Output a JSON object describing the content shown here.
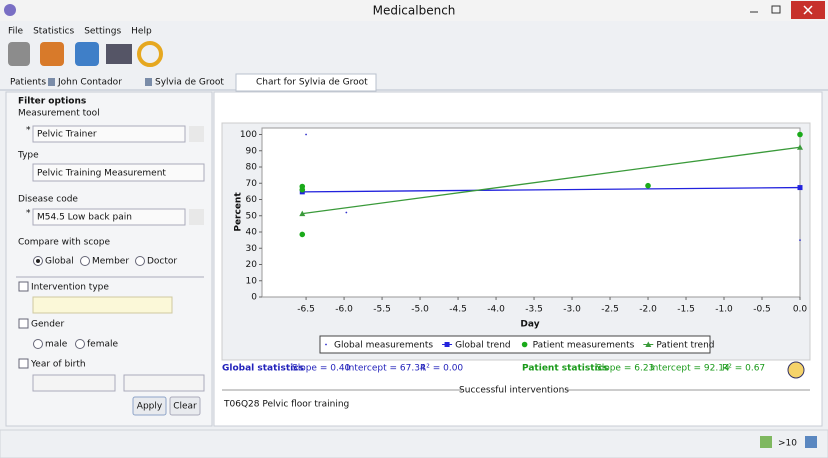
{
  "window": {
    "title": "Medicalbench"
  },
  "menu": [
    "File",
    "Statistics",
    "Settings",
    "Help"
  ],
  "tabs": [
    "Patients",
    "John Contador",
    "Sylvia de Groot",
    "Chart for Sylvia de Groot"
  ],
  "filter": {
    "title": "Filter options",
    "required_mark": "*",
    "measurement_tool_label": "Measurement tool",
    "measurement_tool": "Pelvic Trainer",
    "type_label": "Type",
    "type": "Pelvic Training Measurement",
    "disease_label": "Disease code",
    "disease": "M54.5 Low back pain",
    "scope_label": "Compare with scope",
    "scopes": [
      "Global",
      "Member",
      "Doctor"
    ],
    "intervention_label": "Intervention type",
    "gender_label": "Gender",
    "genders": [
      "male",
      "female"
    ],
    "year_label": "Year of birth",
    "apply": "Apply",
    "clear": "Clear"
  },
  "chart_data": {
    "type": "line",
    "x_label": "Day",
    "y_label": "Percent",
    "xlim": [
      -7.08,
      0
    ],
    "ylim": [
      0,
      104
    ],
    "xticks": [
      -6.5,
      {
        "value": -6,
        "label": "-6.0"
      },
      -5.5,
      {
        "value": -5,
        "label": "-5.0"
      },
      -4.5,
      {
        "value": -4,
        "label": "-4.0"
      },
      -3.5,
      {
        "value": -3,
        "label": "-3.0"
      },
      -2.5,
      {
        "value": -2,
        "label": "-2.0"
      },
      -1.5,
      {
        "value": -1,
        "label": "-1.0"
      },
      -0.5,
      {
        "value": 0,
        "label": "0.0"
      }
    ],
    "yticks": [
      0,
      10,
      20,
      30,
      40,
      50,
      60,
      70,
      80,
      90,
      100
    ],
    "series": [
      {
        "name": "Global measurements",
        "color": "#3333cc",
        "marker": "dot",
        "line": false,
        "x": [
          -6.5,
          -5.97,
          0
        ],
        "values": [
          100,
          52,
          35
        ]
      },
      {
        "name": "Global trend",
        "color": "#2222dd",
        "marker": "square",
        "line": true,
        "x": [
          -6.55,
          0
        ],
        "values": [
          64.7,
          67.34
        ]
      },
      {
        "name": "Patient measurements",
        "color": "#1aaa1a",
        "marker": "circle",
        "line": false,
        "x": [
          -6.55,
          -6.55,
          -6.55,
          -2,
          0
        ],
        "values": [
          68,
          66,
          38.5,
          68.5,
          100
        ]
      },
      {
        "name": "Patient trend",
        "color": "#3a9a3a",
        "marker": "triangle",
        "line": true,
        "x": [
          -6.55,
          0
        ],
        "values": [
          51.3,
          92.14
        ]
      }
    ]
  },
  "global_stats": {
    "title": "Global statistics",
    "slope": "Slope = 0.40",
    "intercept": "Intercept = 67.34",
    "r2": "R² = 0.00"
  },
  "patient_stats": {
    "title": "Patient statistics",
    "slope": "Slope = 6.23",
    "intercept": "Intercept = 92.14",
    "r2": "R² = 0.67"
  },
  "interventions": {
    "title": "Successful interventions",
    "items": [
      "T06Q28 Pelvic floor training"
    ]
  },
  "status": ">10"
}
